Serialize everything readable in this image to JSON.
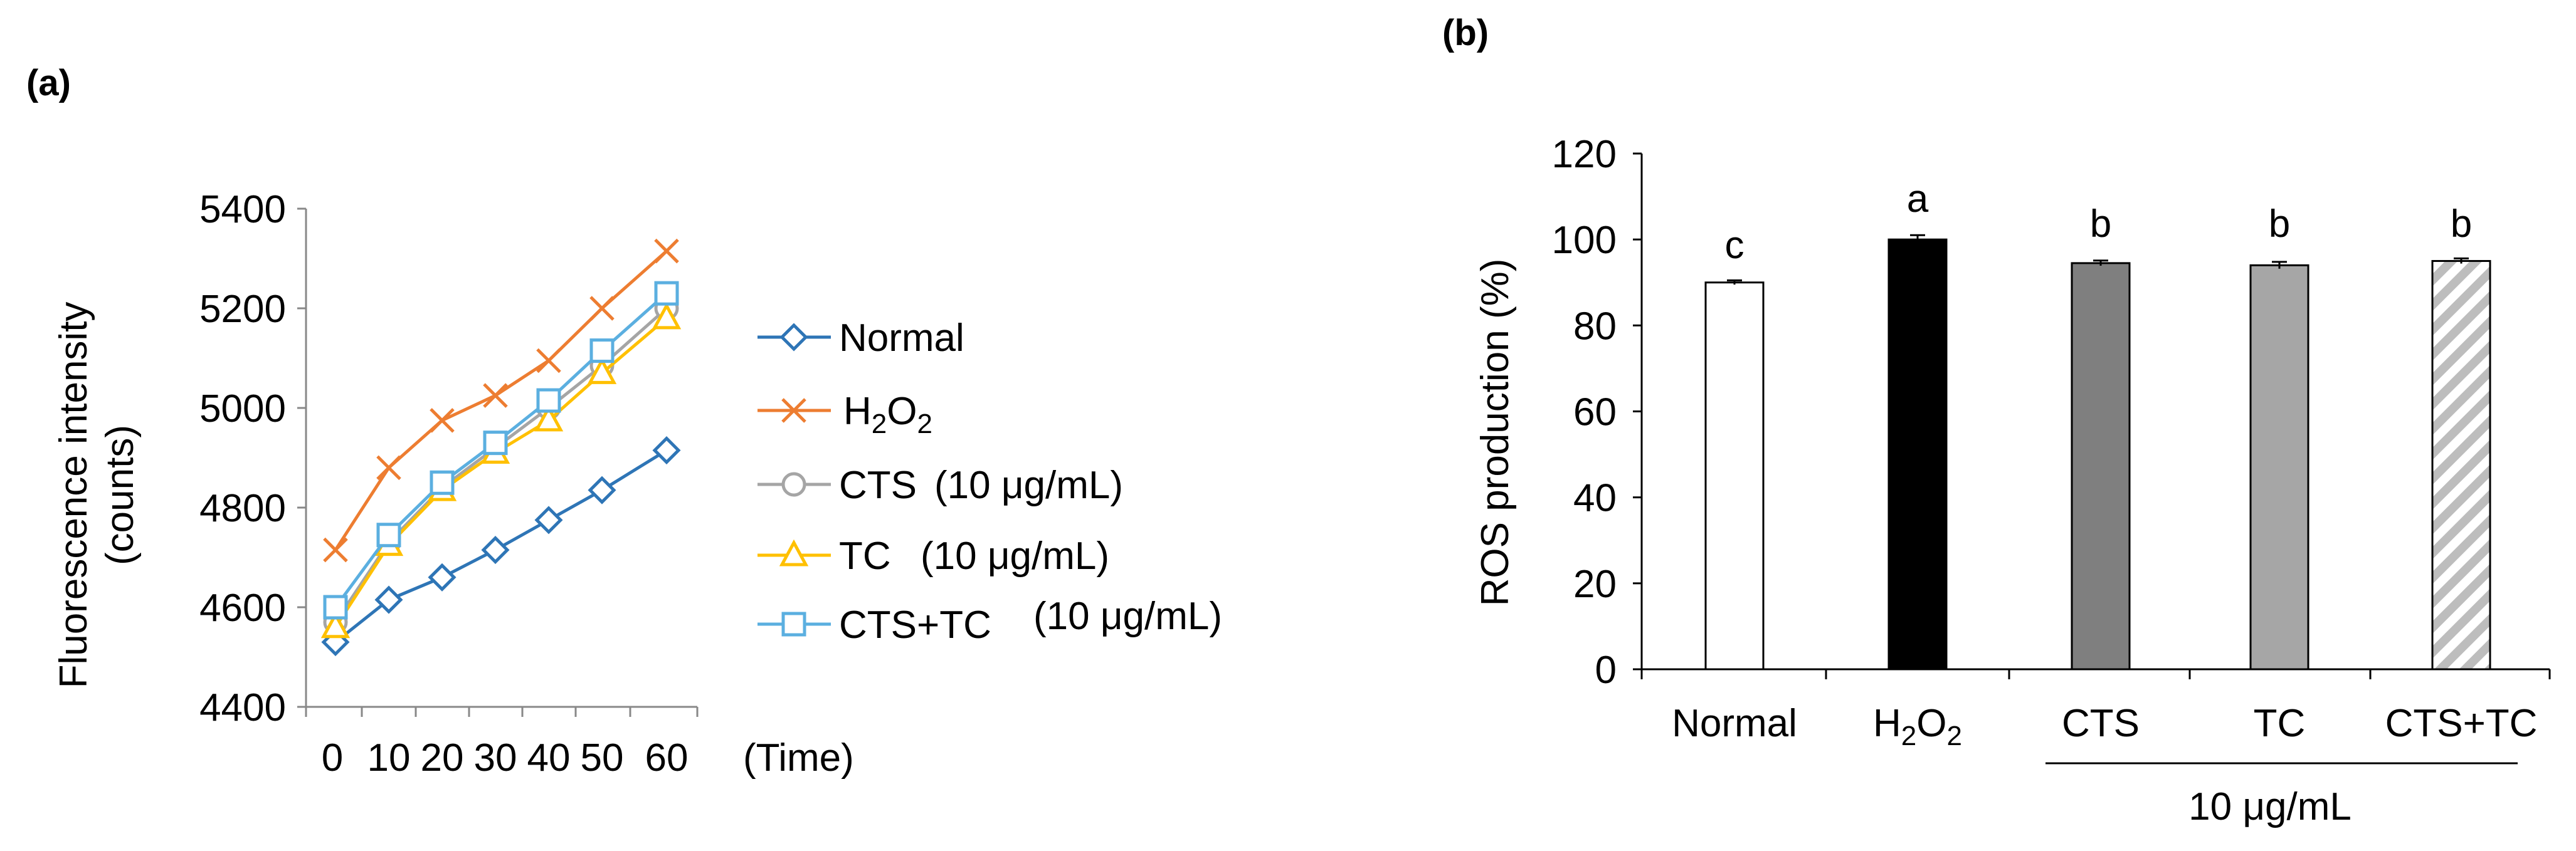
{
  "figure": {
    "panel_a_label": "(a)",
    "panel_b_label": "(b)"
  },
  "chart_data": [
    {
      "type": "line",
      "panel": "(a)",
      "title": "",
      "xlabel": "(Time)",
      "ylabel_line1": "Fluorescence intensity",
      "ylabel_line2": "(counts)",
      "x": [
        0,
        10,
        20,
        30,
        40,
        50,
        60
      ],
      "x_tick_labels": [
        "0",
        "10",
        "20",
        "30",
        "40",
        "50",
        "60"
      ],
      "ylim": [
        4400,
        5400
      ],
      "y_ticks": [
        4400,
        4600,
        4800,
        5000,
        5200,
        5400
      ],
      "grid": false,
      "legend_position": "right",
      "series": [
        {
          "name": "Normal",
          "label_parts": [
            "Normal"
          ],
          "conc": "",
          "marker": "diamond",
          "color": "#2E75B6",
          "values": [
            4530,
            4615,
            4660,
            4715,
            4775,
            4835,
            4915
          ]
        },
        {
          "name": "H2O2",
          "label_parts": [
            "H",
            "2",
            "O",
            "2"
          ],
          "conc": "",
          "marker": "x",
          "color": "#ED7D31",
          "values": [
            4715,
            4880,
            4975,
            5025,
            5095,
            5200,
            5315
          ]
        },
        {
          "name": "CTS",
          "label_parts": [
            "CTS"
          ],
          "conc": "(10 μg/mL)",
          "marker": "circle",
          "color": "#A5A5A5",
          "values": [
            4570,
            4730,
            4840,
            4920,
            5000,
            5085,
            5200
          ]
        },
        {
          "name": "TC",
          "label_parts": [
            "TC"
          ],
          "conc": "(10 μg/mL)",
          "marker": "triangle",
          "color": "#FFC000",
          "values": [
            4560,
            4725,
            4835,
            4910,
            4975,
            5070,
            5180
          ]
        },
        {
          "name": "CTS+TC",
          "label_parts": [
            "CTS+TC"
          ],
          "conc": "(10 μg/mL)",
          "marker": "square",
          "color": "#5BAFE0",
          "values": [
            4600,
            4745,
            4850,
            4930,
            5015,
            5115,
            5230
          ]
        }
      ]
    },
    {
      "type": "bar",
      "panel": "(b)",
      "title": "",
      "xlabel": "",
      "ylabel": "ROS production (%)",
      "ylim": [
        0,
        120
      ],
      "y_ticks": [
        0,
        20,
        40,
        60,
        80,
        100,
        120
      ],
      "grid": false,
      "group_label": "10 μg/mL",
      "bars": [
        {
          "category": "Normal",
          "label_parts": [
            "Normal"
          ],
          "value": 90,
          "error": 0.5,
          "significance": "c",
          "fill": "white"
        },
        {
          "category": "H2O2",
          "label_parts": [
            "H",
            "2",
            "O",
            "2"
          ],
          "value": 100,
          "error": 1.0,
          "significance": "a",
          "fill": "black"
        },
        {
          "category": "CTS",
          "label_parts": [
            "CTS"
          ],
          "value": 94.5,
          "error": 0.6,
          "significance": "b",
          "fill": "dark-gray"
        },
        {
          "category": "TC",
          "label_parts": [
            "TC"
          ],
          "value": 94,
          "error": 0.8,
          "significance": "b",
          "fill": "light-gray"
        },
        {
          "category": "CTS+TC",
          "label_parts": [
            "CTS+TC"
          ],
          "value": 95,
          "error": 0.6,
          "significance": "b",
          "fill": "hatched"
        }
      ]
    }
  ]
}
